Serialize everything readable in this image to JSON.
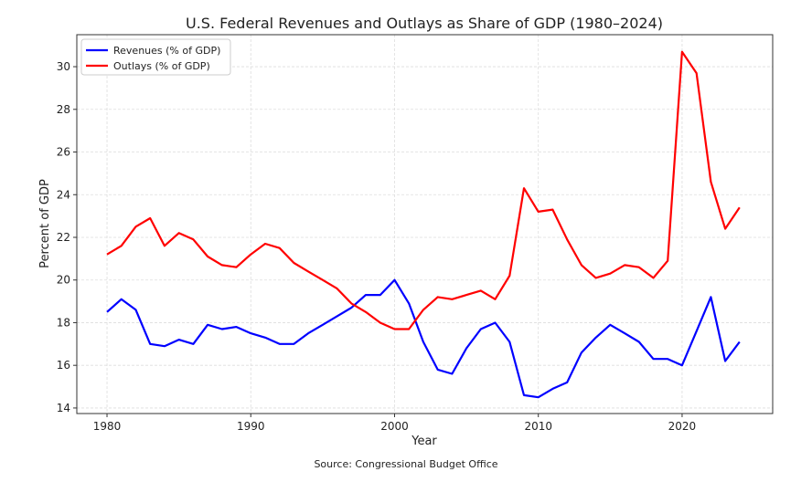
{
  "chart_data": {
    "type": "line",
    "title": "U.S. Federal Revenues and Outlays as Share of GDP (1980–2024)",
    "xlabel": "Year",
    "ylabel": "Percent of GDP",
    "source": "Source: Congressional Budget Office",
    "xlim": [
      1977.9,
      2026.3
    ],
    "ylim": [
      13.74,
      31.5
    ],
    "xticks": [
      1980,
      1990,
      2000,
      2010,
      2020
    ],
    "yticks": [
      14,
      16,
      18,
      20,
      22,
      24,
      26,
      28,
      30
    ],
    "grid": true,
    "legend_position": "top-left",
    "x": [
      1980,
      1981,
      1982,
      1983,
      1984,
      1985,
      1986,
      1987,
      1988,
      1989,
      1990,
      1991,
      1992,
      1993,
      1994,
      1995,
      1996,
      1997,
      1998,
      1999,
      2000,
      2001,
      2002,
      2003,
      2004,
      2005,
      2006,
      2007,
      2008,
      2009,
      2010,
      2011,
      2012,
      2013,
      2014,
      2015,
      2016,
      2017,
      2018,
      2019,
      2020,
      2021,
      2022,
      2023,
      2024
    ],
    "series": [
      {
        "name": "Revenues (% of GDP)",
        "color": "#0000ff",
        "values": [
          18.5,
          19.1,
          18.6,
          17.0,
          16.9,
          17.2,
          17.0,
          17.9,
          17.7,
          17.8,
          17.5,
          17.3,
          17.0,
          17.0,
          17.5,
          17.9,
          18.3,
          18.7,
          19.3,
          19.3,
          20.0,
          18.9,
          17.1,
          15.8,
          15.6,
          16.8,
          17.7,
          18.0,
          17.1,
          14.6,
          14.5,
          14.9,
          15.2,
          16.6,
          17.3,
          17.9,
          17.5,
          17.1,
          16.3,
          16.3,
          16.0,
          17.6,
          19.2,
          16.2,
          17.1
        ]
      },
      {
        "name": "Outlays (% of GDP)",
        "color": "#ff0000",
        "values": [
          21.2,
          21.6,
          22.5,
          22.9,
          21.6,
          22.2,
          21.9,
          21.1,
          20.7,
          20.6,
          21.2,
          21.7,
          21.5,
          20.8,
          20.4,
          20.0,
          19.6,
          18.9,
          18.5,
          18.0,
          17.7,
          17.7,
          18.6,
          19.2,
          19.1,
          19.3,
          19.5,
          19.1,
          20.2,
          24.3,
          23.2,
          23.3,
          21.9,
          20.7,
          20.1,
          20.3,
          20.7,
          20.6,
          20.1,
          20.9,
          30.7,
          29.7,
          24.6,
          22.4,
          23.4
        ]
      }
    ]
  }
}
